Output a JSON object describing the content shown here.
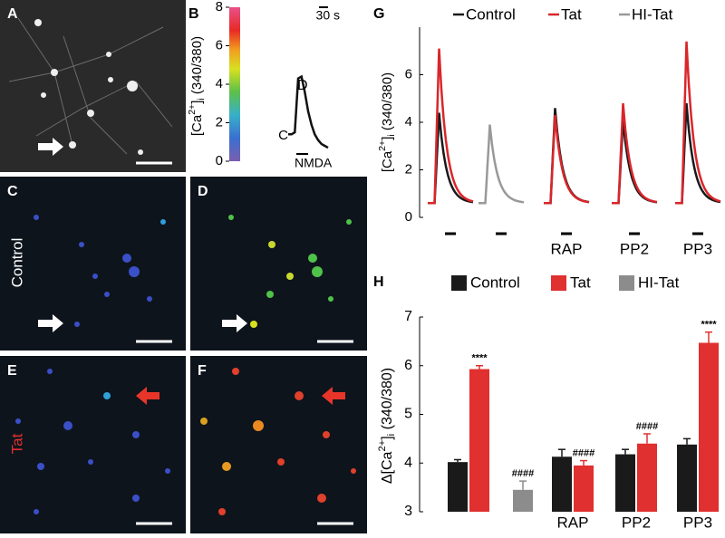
{
  "panels": [
    "A",
    "B",
    "C",
    "D",
    "E",
    "F",
    "G",
    "H"
  ],
  "image_labels": {
    "control": "Control",
    "tat": "Tat"
  },
  "chart_data": [
    {
      "type": "colorbar-trace",
      "ylim": [
        0,
        8
      ],
      "yticks": [
        0,
        2,
        4,
        6,
        8
      ],
      "ylabel": {
        "base": "[Ca",
        "sup": "2+",
        "mid": "]",
        "sub": "i",
        "tail": " (340/380)"
      },
      "values": [
        1.4,
        1.4,
        1.5,
        4.3,
        4.4,
        3.6,
        2.6,
        1.9,
        1.4,
        1.1,
        0.9,
        0.8,
        0.7
      ],
      "annotations": [
        "C",
        "D"
      ],
      "time_label": "30 s",
      "stimulus": "NMDA"
    },
    {
      "type": "trace",
      "ylim": [
        0,
        8
      ],
      "yticks": [
        0,
        2,
        4,
        6
      ],
      "baseline": 0.6,
      "ylabel": {
        "base": "[Ca",
        "sup": "2+",
        "mid": "]",
        "sub": "i",
        "tail": " (340/380)"
      },
      "categories": [
        null,
        null,
        "RAP",
        "PP2",
        "PP3"
      ],
      "series": [
        {
          "name": "Control",
          "color": "#1a1a1a",
          "values": [
            4.4,
            null,
            4.6,
            4.1,
            4.8
          ]
        },
        {
          "name": "Tat",
          "color": "#d9262b",
          "values": [
            7.1,
            null,
            4.3,
            4.8,
            7.4
          ]
        },
        {
          "name": "HI-Tat",
          "color": "#999999",
          "values": [
            null,
            3.9,
            null,
            null,
            null
          ]
        }
      ]
    },
    {
      "type": "bar",
      "ylim": [
        3,
        7
      ],
      "yticks": [
        3,
        4,
        5,
        6,
        7
      ],
      "ylabel": {
        "base": "Δ[Ca",
        "sup": "2+",
        "mid": "]",
        "sub": "i",
        "tail": " (340/380)"
      },
      "categories": [
        null,
        null,
        "RAP",
        "PP2",
        "PP3"
      ],
      "series": [
        {
          "name": "Control",
          "color": "#1a1a1a",
          "values": [
            4.02,
            null,
            4.13,
            4.18,
            4.38
          ],
          "errors": [
            0.05,
            null,
            0.15,
            0.1,
            0.12
          ],
          "annotations": [
            null,
            null,
            null,
            null,
            null
          ]
        },
        {
          "name": "Tat",
          "color": "#e0302f",
          "values": [
            5.93,
            null,
            3.95,
            4.4,
            6.47
          ],
          "errors": [
            0.07,
            null,
            0.1,
            0.2,
            0.22
          ],
          "annotations": [
            "****",
            null,
            "####",
            "####",
            "****"
          ]
        },
        {
          "name": "HI-Tat",
          "color": "#8c8c8c",
          "values": [
            null,
            3.45,
            null,
            null,
            null
          ],
          "errors": [
            null,
            0.18,
            null,
            null,
            null
          ],
          "annotations": [
            null,
            "####",
            null,
            null,
            null
          ]
        }
      ]
    }
  ]
}
